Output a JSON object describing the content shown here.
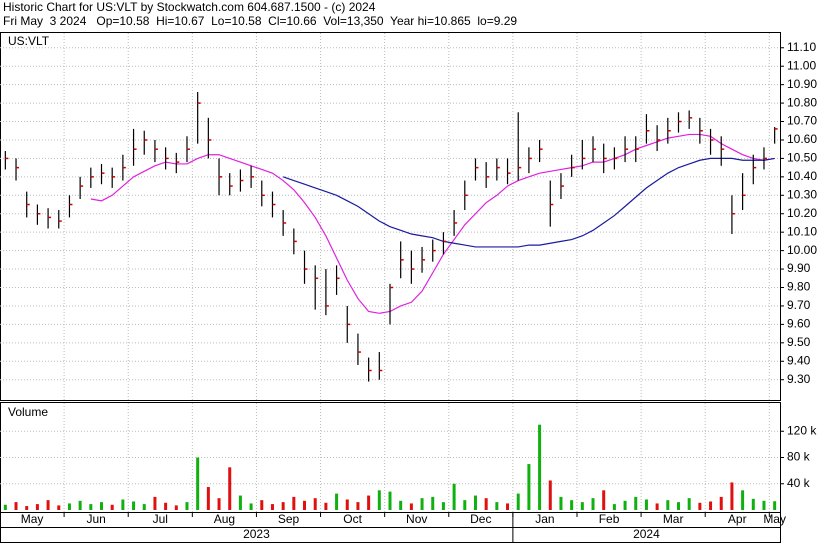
{
  "chart_data": {
    "type": "hlc",
    "title": "Historic Chart for US:VLT by Stockwatch.com 604.687.1500 - (c) 2024",
    "subtitle": "Fri May  3 2024   Op=10.58  Hi=10.67  Lo=10.58  Cl=10.66  Vol=13,350  Year hi=10.865  lo=9.29",
    "symbol_label": "US:VLT",
    "categories": [
      "May",
      null,
      null,
      null,
      null,
      null,
      "Jun",
      null,
      null,
      null,
      null,
      null,
      "Jul",
      null,
      null,
      null,
      null,
      null,
      "Aug",
      null,
      null,
      null,
      null,
      null,
      "Sep",
      null,
      null,
      null,
      null,
      null,
      "Oct",
      null,
      null,
      null,
      null,
      null,
      "Nov",
      null,
      null,
      null,
      null,
      null,
      "Dec",
      null,
      null,
      null,
      null,
      null,
      "Jan",
      null,
      null,
      null,
      null,
      null,
      "Feb",
      null,
      null,
      null,
      null,
      null,
      "Mar",
      null,
      null,
      null,
      null,
      null,
      "Apr",
      null,
      null,
      null,
      null,
      null,
      "May"
    ],
    "year_categories": [
      "2023",
      null,
      null,
      null,
      null,
      null,
      null,
      null,
      null,
      null,
      null,
      null,
      null,
      null,
      null,
      null,
      null,
      null,
      null,
      null,
      null,
      null,
      null,
      null,
      null,
      null,
      null,
      null,
      null,
      null,
      null,
      null,
      null,
      null,
      null,
      null,
      null,
      null,
      null,
      null,
      null,
      null,
      null,
      null,
      null,
      null,
      null,
      null,
      "2024",
      null,
      null,
      null,
      null,
      null,
      null,
      null,
      null,
      null,
      null,
      null,
      null,
      null,
      null,
      null,
      null,
      null,
      null,
      null,
      null,
      null,
      null,
      null,
      null
    ],
    "high": [
      10.54,
      10.5,
      10.32,
      10.25,
      10.23,
      10.22,
      10.3,
      10.4,
      10.45,
      10.47,
      10.45,
      10.52,
      10.66,
      10.65,
      10.6,
      10.56,
      10.53,
      10.62,
      10.86,
      10.72,
      10.5,
      10.42,
      10.44,
      10.46,
      10.38,
      10.32,
      10.22,
      10.12,
      10.0,
      9.92,
      9.9,
      9.92,
      9.7,
      9.55,
      9.42,
      9.45,
      9.82,
      10.05,
      10.0,
      10.02,
      10.06,
      10.1,
      10.22,
      10.38,
      10.5,
      10.48,
      10.5,
      10.5,
      10.75,
      10.56,
      10.6,
      10.38,
      10.42,
      10.52,
      10.6,
      10.62,
      10.58,
      10.56,
      10.62,
      10.62,
      10.74,
      10.68,
      10.72,
      10.75,
      10.76,
      10.72,
      10.66,
      10.62,
      10.3,
      10.42,
      10.52,
      10.56,
      10.67
    ],
    "low": [
      10.44,
      10.38,
      10.18,
      10.14,
      10.12,
      10.12,
      10.18,
      10.28,
      10.34,
      10.36,
      10.34,
      10.38,
      10.46,
      10.52,
      10.48,
      10.44,
      10.42,
      10.48,
      10.58,
      10.5,
      10.3,
      10.3,
      10.32,
      10.34,
      10.24,
      10.18,
      10.08,
      9.98,
      9.82,
      9.68,
      9.65,
      9.76,
      9.5,
      9.38,
      9.29,
      9.3,
      9.6,
      9.85,
      9.82,
      9.88,
      9.94,
      9.98,
      10.08,
      10.22,
      10.38,
      10.34,
      10.38,
      10.36,
      10.38,
      10.42,
      10.48,
      10.13,
      10.28,
      10.4,
      10.44,
      10.48,
      10.42,
      10.44,
      10.48,
      10.48,
      10.58,
      10.54,
      10.58,
      10.64,
      10.66,
      10.58,
      10.52,
      10.46,
      10.09,
      10.22,
      10.36,
      10.44,
      10.58
    ],
    "close": [
      10.5,
      10.45,
      10.25,
      10.2,
      10.18,
      10.16,
      10.25,
      10.35,
      10.4,
      10.42,
      10.4,
      10.45,
      10.55,
      10.6,
      10.55,
      10.5,
      10.48,
      10.55,
      10.8,
      10.6,
      10.4,
      10.35,
      10.38,
      10.4,
      10.3,
      10.25,
      10.15,
      10.05,
      9.9,
      9.85,
      9.7,
      9.85,
      9.6,
      9.45,
      9.35,
      9.35,
      9.8,
      9.95,
      9.9,
      9.95,
      10.0,
      10.05,
      10.15,
      10.3,
      10.45,
      10.4,
      10.45,
      10.42,
      10.45,
      10.5,
      10.55,
      10.25,
      10.35,
      10.45,
      10.5,
      10.55,
      10.5,
      10.5,
      10.55,
      10.55,
      10.65,
      10.6,
      10.65,
      10.7,
      10.72,
      10.65,
      10.6,
      10.55,
      10.2,
      10.3,
      10.45,
      10.5,
      10.66
    ],
    "bar_color": "#000000",
    "close_color": "#d00000",
    "ylim": [
      9.19,
      11.18
    ],
    "yticks": [
      {
        "value": 9.3,
        "label": "9.30"
      },
      {
        "value": 9.4,
        "label": "9.40"
      },
      {
        "value": 9.5,
        "label": "9.50"
      },
      {
        "value": 9.6,
        "label": "9.60"
      },
      {
        "value": 9.7,
        "label": "9.70"
      },
      {
        "value": 9.8,
        "label": "9.80"
      },
      {
        "value": 9.9,
        "label": "9.90"
      },
      {
        "value": 10,
        "label": "10.00"
      },
      {
        "value": 10.1,
        "label": "10.10"
      },
      {
        "value": 10.2,
        "label": "10.20"
      },
      {
        "value": 10.3,
        "label": "10.30"
      },
      {
        "value": 10.4,
        "label": "10.40"
      },
      {
        "value": 10.5,
        "label": "10.50"
      },
      {
        "value": 10.6,
        "label": "10.60"
      },
      {
        "value": 10.7,
        "label": "10.70"
      },
      {
        "value": 10.8,
        "label": "10.80"
      },
      {
        "value": 10.9,
        "label": "10.90"
      },
      {
        "value": 11,
        "label": "11.00"
      },
      {
        "value": 11.1,
        "label": "11.10"
      }
    ],
    "grid": true,
    "series": [
      {
        "color": "#e020e0",
        "values": [
          null,
          null,
          null,
          null,
          null,
          null,
          null,
          null,
          10.28,
          10.27,
          10.3,
          10.35,
          10.4,
          10.43,
          10.46,
          10.48,
          10.47,
          10.47,
          10.5,
          10.52,
          10.52,
          10.5,
          10.48,
          10.46,
          10.44,
          10.42,
          10.38,
          10.33,
          10.26,
          10.18,
          10.08,
          9.96,
          9.84,
          9.74,
          9.67,
          9.66,
          9.67,
          9.7,
          9.72,
          9.78,
          9.88,
          9.98,
          10.06,
          10.14,
          10.2,
          10.26,
          10.3,
          10.35,
          10.38,
          10.4,
          10.42,
          10.43,
          10.44,
          10.45,
          10.46,
          10.48,
          10.48,
          10.5,
          10.52,
          10.55,
          10.57,
          10.59,
          10.61,
          10.62,
          10.63,
          10.63,
          10.62,
          10.58,
          10.55,
          10.52,
          10.5,
          10.49,
          10.5
        ]
      },
      {
        "color": "#1a1aa0",
        "values": [
          null,
          null,
          null,
          null,
          null,
          null,
          null,
          null,
          null,
          null,
          null,
          null,
          null,
          null,
          null,
          null,
          null,
          null,
          null,
          null,
          null,
          null,
          null,
          null,
          null,
          null,
          10.4,
          10.38,
          10.36,
          10.34,
          10.32,
          10.3,
          10.27,
          10.24,
          10.2,
          10.16,
          10.13,
          10.11,
          10.09,
          10.08,
          10.07,
          10.05,
          10.04,
          10.03,
          10.02,
          10.02,
          10.02,
          10.02,
          10.02,
          10.03,
          10.03,
          10.04,
          10.05,
          10.06,
          10.08,
          10.11,
          10.15,
          10.19,
          10.24,
          10.29,
          10.34,
          10.38,
          10.42,
          10.45,
          10.47,
          10.49,
          10.5,
          10.5,
          10.5,
          10.49,
          10.49,
          10.49,
          10.5
        ]
      }
    ],
    "volume": {
      "label": "Volume",
      "up_color": "#10b010",
      "down_color": "#e01010",
      "values": [
        8000,
        12000,
        6000,
        9000,
        15000,
        7000,
        10000,
        14000,
        9000,
        12000,
        8000,
        16000,
        13000,
        9000,
        20000,
        11000,
        7000,
        12000,
        80000,
        35000,
        18000,
        65000,
        22000,
        10000,
        15000,
        9000,
        12000,
        20000,
        14000,
        18000,
        11000,
        25000,
        16000,
        12000,
        22000,
        30000,
        28000,
        14000,
        10000,
        18000,
        20000,
        12000,
        40000,
        15000,
        22000,
        18000,
        12000,
        10000,
        25000,
        70000,
        130000,
        45000,
        20000,
        15000,
        12000,
        18000,
        30000,
        9000,
        14000,
        20000,
        16000,
        10000,
        15000,
        12000,
        18000,
        11000,
        13000,
        20000,
        42000,
        30000,
        17000,
        14000,
        13350
      ],
      "ylim": [
        0,
        160000
      ],
      "yticks": [
        {
          "value": 40000,
          "label": "40 k"
        },
        {
          "value": 80000,
          "label": "80 k"
        },
        {
          "value": 120000,
          "label": "120 k"
        }
      ]
    }
  }
}
